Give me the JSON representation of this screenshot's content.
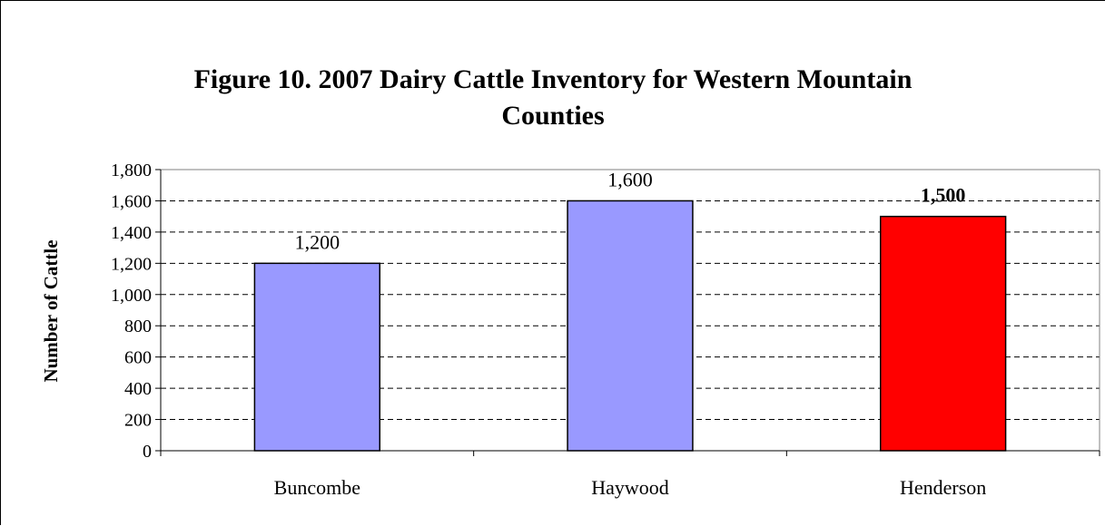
{
  "chart_data": {
    "type": "bar",
    "title_lines": [
      "Figure 10. 2007 Dairy Cattle Inventory for Western Mountain",
      "Counties"
    ],
    "xlabel": "",
    "ylabel": "Number of Cattle",
    "categories": [
      "Buncombe",
      "Haywood",
      "Henderson"
    ],
    "values": [
      1200,
      1600,
      1500
    ],
    "value_labels": [
      "1,200",
      "1,600",
      "1,500"
    ],
    "value_label_bold": [
      false,
      false,
      true
    ],
    "bar_colors": [
      "#9999ff",
      "#9999ff",
      "#ff0000"
    ],
    "ylim": [
      0,
      1800
    ],
    "yticks": [
      0,
      200,
      400,
      600,
      800,
      1000,
      1200,
      1400,
      1600,
      1800
    ],
    "ytick_labels": [
      "0",
      "200",
      "400",
      "600",
      "800",
      "1,000",
      "1,200",
      "1,400",
      "1,600",
      "1,800"
    ],
    "grid": "dashed horizontal",
    "legend": "none"
  }
}
